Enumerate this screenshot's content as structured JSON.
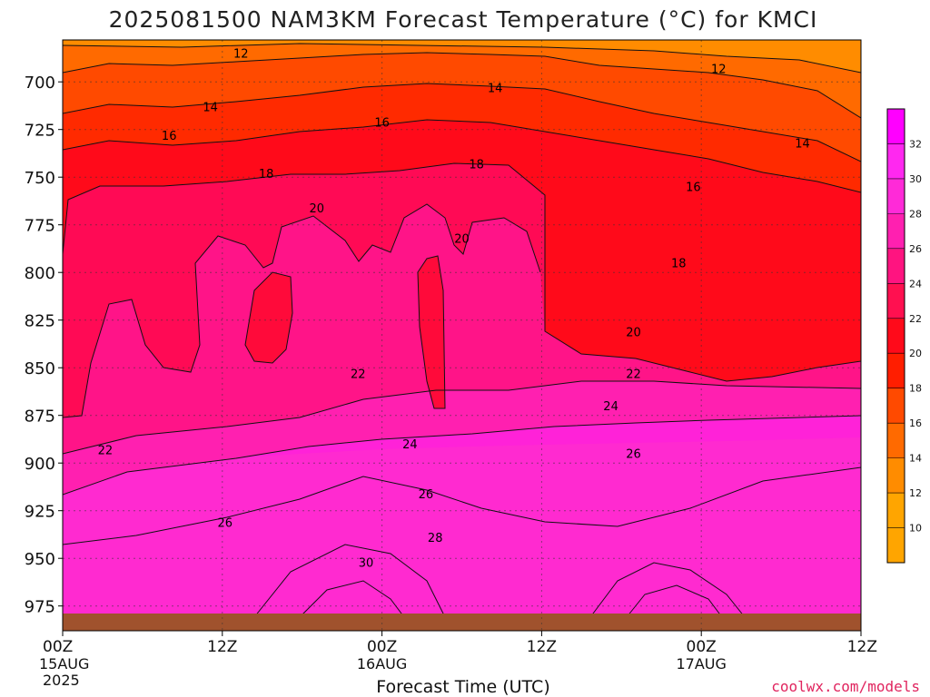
{
  "chart_data": {
    "type": "heatmap",
    "title": "2025081500 NAM3KM Forecast Temperature (°C) for KMCI",
    "xlabel": "Forecast Time (UTC)",
    "ylabel": "",
    "credit": "coolwx.com/models",
    "x_ticks": [
      {
        "label": "00Z",
        "hour": 0,
        "date": "15AUG",
        "year": "2025"
      },
      {
        "label": "12Z",
        "hour": 12,
        "date": "",
        "year": ""
      },
      {
        "label": "00Z",
        "hour": 24,
        "date": "16AUG",
        "year": ""
      },
      {
        "label": "12Z",
        "hour": 36,
        "date": "",
        "year": ""
      },
      {
        "label": "00Z",
        "hour": 48,
        "date": "17AUG",
        "year": ""
      },
      {
        "label": "12Z",
        "hour": 60,
        "date": "",
        "year": ""
      }
    ],
    "xlim": [
      0,
      60
    ],
    "y_ticks": [
      700,
      725,
      750,
      775,
      800,
      825,
      850,
      875,
      900,
      925,
      950,
      975
    ],
    "ylim": [
      678,
      988
    ],
    "y_inverted": true,
    "grid": true,
    "colorbar": {
      "ticks": [
        10,
        12,
        14,
        16,
        18,
        20,
        22,
        24,
        26,
        28,
        30,
        32
      ],
      "colors": [
        "#ffa500",
        "#ff8c00",
        "#ff6a00",
        "#ff4a00",
        "#ff1e00",
        "#ff0a1a",
        "#ff1050",
        "#ff1480",
        "#ff20b0",
        "#ff2ad8",
        "#ff28f0",
        "#ff00ff"
      ],
      "placement": "right"
    },
    "contour_labels": [
      {
        "value": "12",
        "hour": 13.4,
        "level": 685
      },
      {
        "value": "12",
        "hour": 49.3,
        "level": 693
      },
      {
        "value": "14",
        "hour": 11.1,
        "level": 713
      },
      {
        "value": "14",
        "hour": 32.5,
        "level": 703
      },
      {
        "value": "14",
        "hour": 55.6,
        "level": 732
      },
      {
        "value": "16",
        "hour": 8.0,
        "level": 728
      },
      {
        "value": "16",
        "hour": 24.0,
        "level": 721
      },
      {
        "value": "16",
        "hour": 47.4,
        "level": 755
      },
      {
        "value": "18",
        "hour": 15.3,
        "level": 748
      },
      {
        "value": "18",
        "hour": 31.1,
        "level": 743
      },
      {
        "value": "18",
        "hour": 46.3,
        "level": 795
      },
      {
        "value": "20",
        "hour": 19.1,
        "level": 766
      },
      {
        "value": "20",
        "hour": 30.0,
        "level": 782
      },
      {
        "value": "20",
        "hour": 42.9,
        "level": 831
      },
      {
        "value": "22",
        "hour": 3.2,
        "level": 893
      },
      {
        "value": "22",
        "hour": 22.2,
        "level": 853
      },
      {
        "value": "22",
        "hour": 42.9,
        "level": 853
      },
      {
        "value": "24",
        "hour": 26.1,
        "level": 890
      },
      {
        "value": "24",
        "hour": 41.2,
        "level": 870
      },
      {
        "value": "26",
        "hour": 12.2,
        "level": 931
      },
      {
        "value": "26",
        "hour": 27.3,
        "level": 916
      },
      {
        "value": "26",
        "hour": 42.9,
        "level": 895
      },
      {
        "value": "28",
        "hour": 28.0,
        "level": 939
      },
      {
        "value": "30",
        "hour": 22.8,
        "level": 952
      }
    ]
  }
}
